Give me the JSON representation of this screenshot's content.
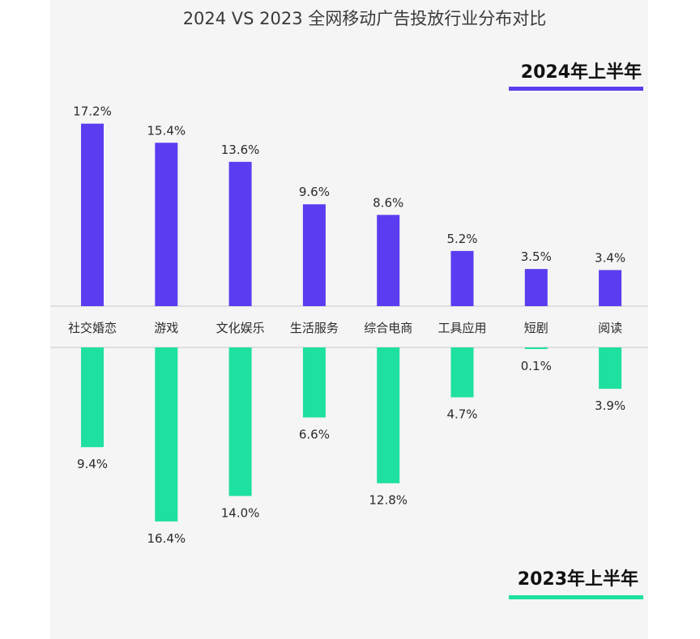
{
  "chart_data": {
    "type": "bar",
    "title": "2024 VS 2023 全网移动广告投放行业分布对比",
    "categories": [
      "社交婚恋",
      "游戏",
      "文化娱乐",
      "生活服务",
      "综合电商",
      "工具应用",
      "短剧",
      "阅读"
    ],
    "series": [
      {
        "name": "2024年上半年",
        "color": "#5b3cf0",
        "values": [
          17.2,
          15.4,
          13.6,
          9.6,
          8.6,
          5.2,
          3.5,
          3.4
        ],
        "labels": [
          "17.2%",
          "15.4%",
          "13.6%",
          "9.6%",
          "8.6%",
          "5.2%",
          "3.5%",
          "3.4%"
        ]
      },
      {
        "name": "2023年上半年",
        "color": "#1ee0a0",
        "values": [
          9.4,
          16.4,
          14.0,
          6.6,
          12.8,
          4.7,
          0.1,
          3.9
        ],
        "labels": [
          "9.4%",
          "16.4%",
          "14.0%",
          "6.6%",
          "12.8%",
          "4.7%",
          "0.1%",
          "3.9%"
        ]
      }
    ],
    "xlabel": "",
    "ylabel": "",
    "legend": [
      "2024年上半年",
      "2023年上半年"
    ]
  }
}
